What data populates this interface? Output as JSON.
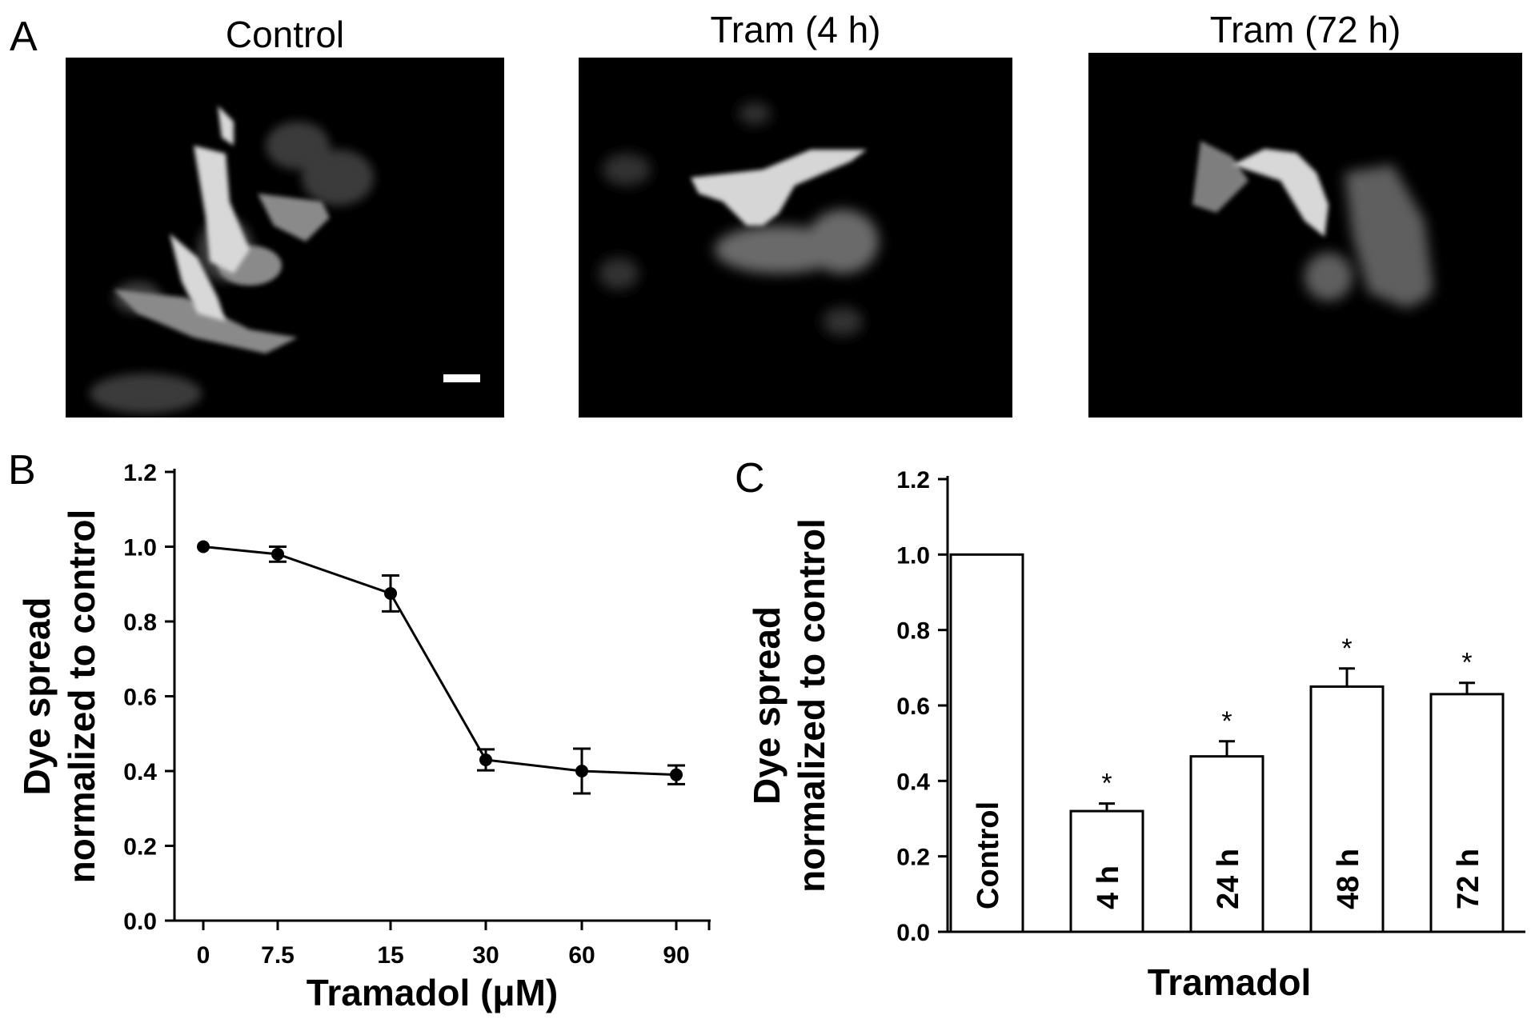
{
  "panels": {
    "a": {
      "letter": "A"
    },
    "b": {
      "letter": "B"
    },
    "c": {
      "letter": "C"
    }
  },
  "images": [
    {
      "title": "Control",
      "scale_bar": true
    },
    {
      "title": "Tram (4 h)",
      "scale_bar": false
    },
    {
      "title": "Tram (72 h)",
      "scale_bar": false
    }
  ],
  "chart_data": [
    {
      "type": "line",
      "panel": "B",
      "xlabel": "Tramadol (μM)",
      "ylabel": [
        "Dye spread",
        "normalized to control"
      ],
      "categories": [
        "0",
        "7.5",
        "15",
        "30",
        "60",
        "90"
      ],
      "values": [
        1.0,
        0.98,
        0.875,
        0.43,
        0.4,
        0.39
      ],
      "errors": [
        0.0,
        0.02,
        0.048,
        0.028,
        0.06,
        0.025
      ],
      "ylim": [
        0.0,
        1.2
      ],
      "yticks": [
        "0.0",
        "0.2",
        "0.4",
        "0.6",
        "0.8",
        "1.0",
        "1.2"
      ],
      "color": "#000000"
    },
    {
      "type": "bar",
      "panel": "C",
      "xlabel": "Tramadol",
      "ylabel": [
        "Dye spread",
        "normalized to control"
      ],
      "categories": [
        "Control",
        "4 h",
        "24 h",
        "48 h",
        "72 h"
      ],
      "values": [
        1.0,
        0.32,
        0.465,
        0.65,
        0.63
      ],
      "errors": [
        0.0,
        0.02,
        0.04,
        0.048,
        0.03
      ],
      "significance": [
        "",
        "*",
        "*",
        "*",
        "*"
      ],
      "ylim": [
        0.0,
        1.2
      ],
      "yticks": [
        "0.0",
        "0.2",
        "0.4",
        "0.6",
        "0.8",
        "1.0",
        "1.2"
      ],
      "bar_color": "#ffffff",
      "edge_color": "#000000"
    }
  ]
}
